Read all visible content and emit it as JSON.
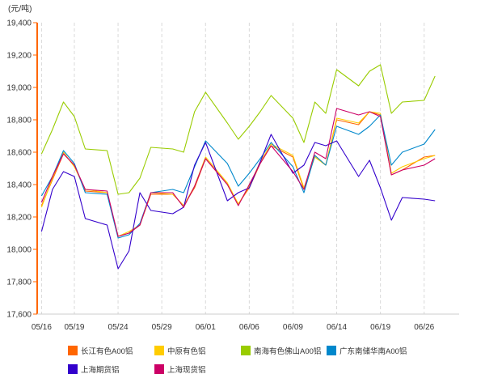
{
  "chart_data": {
    "type": "line",
    "unit_label": "(元/吨)",
    "y_ticks": [
      17600,
      17800,
      18000,
      18200,
      18400,
      18600,
      18800,
      19000,
      19200,
      19400
    ],
    "y_tick_labels": [
      "17,600",
      "17,800",
      "18,000",
      "18,200",
      "18,400",
      "18,600",
      "18,800",
      "19,000",
      "19,200",
      "19,400"
    ],
    "ylim": [
      17600,
      19400
    ],
    "x": [
      "05/16",
      "05/17",
      "05/18",
      "05/19",
      "05/20",
      "05/23",
      "05/24",
      "05/25",
      "05/26",
      "05/27",
      "05/30",
      "05/31",
      "06/01",
      "06/02",
      "06/06",
      "06/07",
      "06/08",
      "06/09",
      "06/10",
      "06/13",
      "06/14",
      "06/15",
      "06/16",
      "06/17",
      "06/20",
      "06/21",
      "06/22",
      "06/23",
      "06/24",
      "06/27",
      "06/28"
    ],
    "x_tick_labels": [
      "05/16",
      "05/19",
      "05/24",
      "05/29",
      "06/01",
      "06/06",
      "06/09",
      "06/14",
      "06/19",
      "06/26"
    ],
    "x_tick_positions": [
      0,
      3,
      7,
      11,
      15,
      19,
      23,
      27,
      31,
      35
    ],
    "x_index_positions": [
      0,
      1,
      2,
      3,
      4,
      6,
      7,
      8,
      9,
      10,
      12,
      13,
      14,
      15,
      17,
      18,
      19,
      20,
      21,
      23,
      24,
      25,
      26,
      27,
      29,
      30,
      31,
      32,
      33,
      35,
      36
    ],
    "x_domain": [
      -0.4,
      38.2
    ],
    "grid": "vertical dashed",
    "legend_position": "bottom",
    "series": [
      {
        "name": "长江有色A00铝",
        "color": "#ff6600",
        "values": [
          18270,
          18430,
          18590,
          18520,
          18360,
          18350,
          18080,
          18100,
          18150,
          18340,
          18340,
          18270,
          18380,
          18560,
          18400,
          18280,
          18380,
          18530,
          18640,
          18570,
          18370,
          18580,
          18520,
          18800,
          18770,
          18850,
          18830,
          18460,
          18490,
          18570,
          18580
        ]
      },
      {
        "name": "中原有色铝",
        "color": "#ffcc00",
        "values": [
          18260,
          18440,
          18600,
          18510,
          18370,
          18350,
          18080,
          18110,
          18150,
          18350,
          18340,
          18270,
          18390,
          18570,
          18410,
          18280,
          18390,
          18540,
          18650,
          18580,
          18380,
          18570,
          18520,
          18810,
          18780,
          18850,
          18840,
          18470,
          18510,
          18560,
          18580
        ]
      },
      {
        "name": "南海有色佛山A00铝",
        "color": "#99cc00",
        "values": [
          18590,
          18740,
          18910,
          18820,
          18620,
          18610,
          18340,
          18350,
          18440,
          18630,
          18620,
          18600,
          18850,
          18970,
          18780,
          18680,
          18760,
          18850,
          18950,
          18810,
          18660,
          18910,
          18840,
          19110,
          19010,
          19100,
          19140,
          18840,
          18910,
          18920,
          19070
        ]
      },
      {
        "name": "广东南储华南A00铝",
        "color": "#0088cc",
        "values": [
          18330,
          18450,
          18610,
          18530,
          18350,
          18340,
          18070,
          18090,
          18160,
          18350,
          18370,
          18350,
          18510,
          18670,
          18530,
          18390,
          18470,
          18560,
          18660,
          18510,
          18350,
          18580,
          18520,
          18760,
          18710,
          18760,
          18830,
          18520,
          18600,
          18650,
          18740
        ]
      },
      {
        "name": "上海期货铝",
        "color": "#3300cc",
        "values": [
          18110,
          18370,
          18480,
          18450,
          18190,
          18150,
          17880,
          17990,
          18350,
          18240,
          18220,
          18260,
          18520,
          18660,
          18300,
          18350,
          18380,
          18540,
          18710,
          18470,
          18520,
          18660,
          18640,
          18670,
          18450,
          18550,
          18380,
          18180,
          18320,
          18310,
          18300
        ]
      },
      {
        "name": "上海现货铝",
        "color": "#cc0066",
        "values": [
          18290,
          18450,
          18590,
          18520,
          18370,
          18360,
          18080,
          18100,
          18150,
          18350,
          18350,
          18260,
          18390,
          18560,
          18400,
          18270,
          18400,
          18530,
          18640,
          18480,
          18370,
          18600,
          18560,
          18870,
          18830,
          18850,
          18820,
          18460,
          18490,
          18520,
          18560
        ]
      }
    ]
  }
}
